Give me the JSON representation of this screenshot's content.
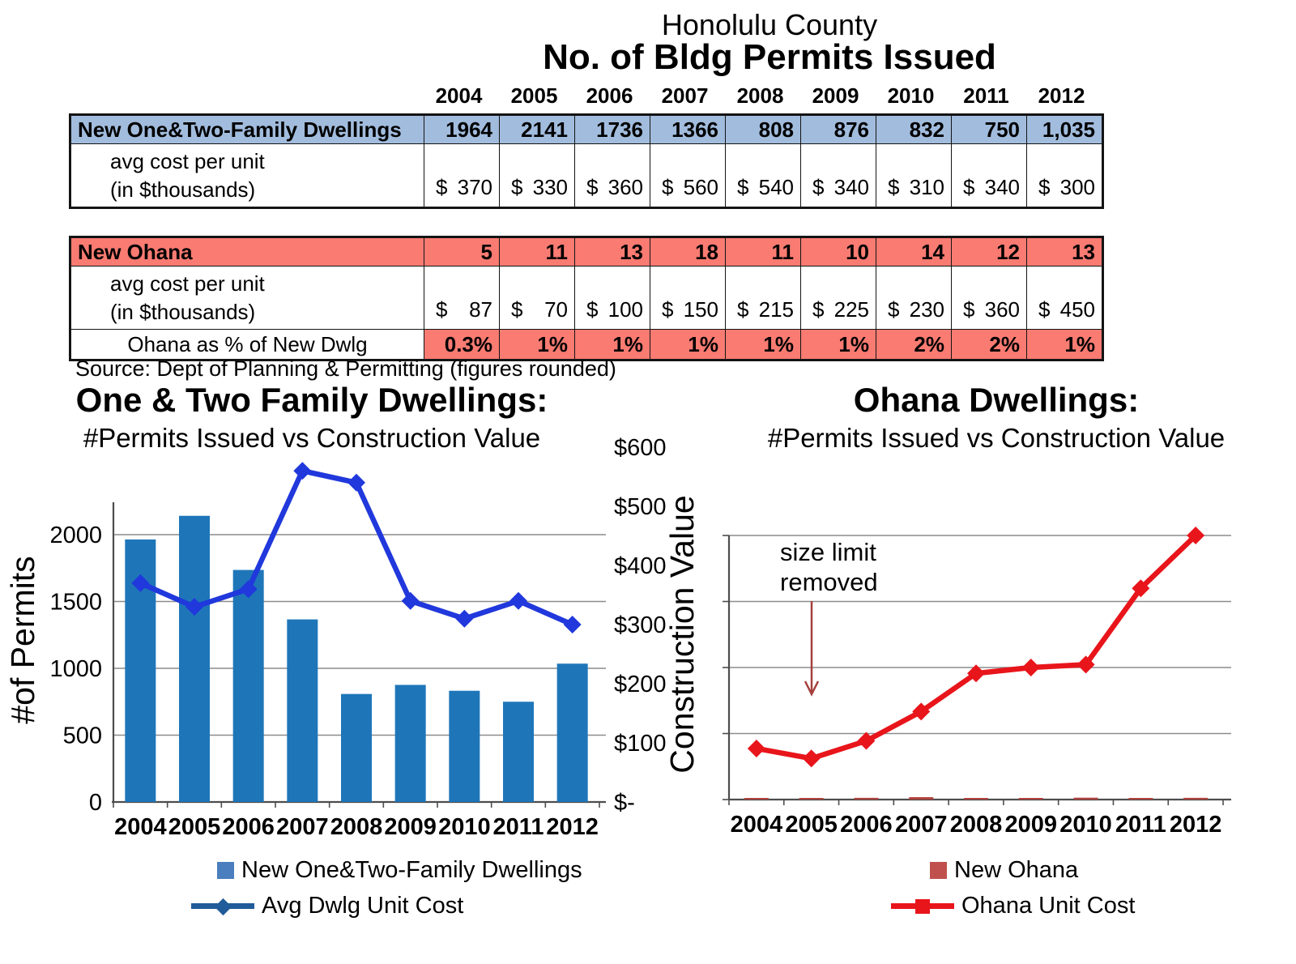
{
  "header": {
    "supertitle": "Honolulu County",
    "title": "No. of Bldg Permits Issued"
  },
  "years": [
    "2004",
    "2005",
    "2006",
    "2007",
    "2008",
    "2009",
    "2010",
    "2011",
    "2012"
  ],
  "table1": {
    "header_label": "New One&Two-Family Dwellings",
    "header_values": [
      "1964",
      "2141",
      "1736",
      "1366",
      "808",
      "876",
      "832",
      "750",
      "1,035"
    ],
    "cost_label_line1": "avg cost per unit",
    "cost_label_line2": "(in $thousands)",
    "currency": "$",
    "cost_values": [
      "370",
      "330",
      "360",
      "560",
      "540",
      "340",
      "310",
      "340",
      "300"
    ],
    "header_fill": "#A2BCDD"
  },
  "table2": {
    "header_label": "New Ohana",
    "header_values": [
      "5",
      "11",
      "13",
      "18",
      "11",
      "10",
      "14",
      "12",
      "13"
    ],
    "cost_label_line1": "avg cost per unit",
    "cost_label_line2": "(in $thousands)",
    "currency": "$",
    "cost_values": [
      "87",
      "70",
      "100",
      "150",
      "215",
      "225",
      "230",
      "360",
      "450"
    ],
    "pct_label": "Ohana as % of New Dwlg",
    "pct_values": [
      "0.3%",
      "1%",
      "1%",
      "1%",
      "1%",
      "1%",
      "2%",
      "2%",
      "1%"
    ],
    "header_fill": "#F97B72"
  },
  "source": "Source: Dept of Planning & Permitting (figures rounded)",
  "chart_data": [
    {
      "type": "bar+line",
      "title": "One & Two Family Dwellings:",
      "subtitle": "#Permits Issued vs Construction Value",
      "categories": [
        "2004",
        "2005",
        "2006",
        "2007",
        "2008",
        "2009",
        "2010",
        "2011",
        "2012"
      ],
      "series": [
        {
          "name": "New One&Two-Family Dwellings",
          "type": "bar",
          "axis": "left",
          "values": [
            1964,
            2141,
            1736,
            1366,
            808,
            876,
            832,
            750,
            1035
          ],
          "color": "#1E76B9",
          "legend_color": "#4A7EBE"
        },
        {
          "name": "Avg Dwlg Unit Cost",
          "type": "line",
          "axis": "right",
          "values": [
            370,
            330,
            360,
            560,
            540,
            340,
            310,
            340,
            300
          ],
          "color": "#2038DC",
          "legend_color": "#1F5C99"
        }
      ],
      "left_axis": {
        "label": "#of Permits",
        "ticks": [
          0,
          500,
          1000,
          1500,
          2000
        ],
        "max": 2650
      },
      "right_axis": {
        "label": "Construction Value",
        "tick_labels": [
          "$-",
          "$100",
          "$200",
          "$300",
          "$400",
          "$500",
          "$600"
        ],
        "max": 600
      },
      "grid": true,
      "legend_position": "bottom"
    },
    {
      "type": "bar+line",
      "title": "Ohana Dwellings:",
      "subtitle": "#Permits Issued vs Construction Value",
      "categories": [
        "2004",
        "2005",
        "2006",
        "2007",
        "2008",
        "2009",
        "2010",
        "2011",
        "2012"
      ],
      "series": [
        {
          "name": "New Ohana",
          "type": "bar",
          "axis": "left",
          "values": [
            5,
            11,
            13,
            18,
            11,
            10,
            14,
            12,
            13
          ],
          "color": "#B2423E",
          "legend_color": "#C0504D"
        },
        {
          "name": "Ohana Unit Cost",
          "type": "line",
          "axis": "right",
          "values": [
            87,
            70,
            100,
            150,
            215,
            225,
            230,
            360,
            450
          ],
          "color": "#E8151B",
          "legend_color": "#E8151B"
        }
      ],
      "value_axis": {
        "max": 450,
        "gridline_count": 5,
        "labels_hidden": true
      },
      "bar_axis": {
        "max": 2650,
        "labels_hidden": true
      },
      "annotation": {
        "line1": "size limit",
        "line2": "removed",
        "arrow_color": "#A5403C",
        "points_at_category": "2005"
      },
      "grid": true,
      "legend_position": "bottom"
    }
  ],
  "colors": {
    "table_blue": "#A2BCDD",
    "table_red": "#F97B72",
    "gridline": "#8C8C8C",
    "axis": "#4D4D4D"
  }
}
